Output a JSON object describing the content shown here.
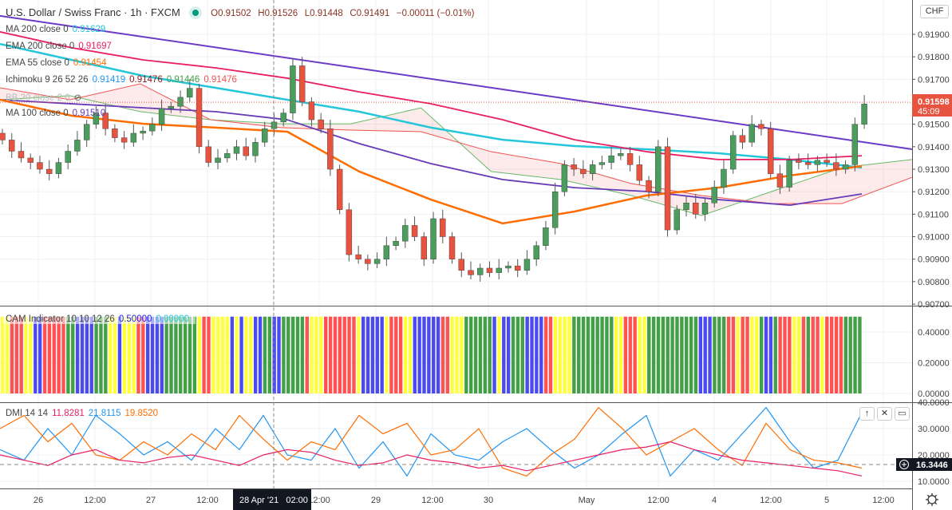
{
  "header": {
    "symbol": "U.S. Dollar / Swiss Franc · 1h · FXCM",
    "open": "O0.91502",
    "high": "H0.91526",
    "low": "L0.91448",
    "close": "C0.91491",
    "change": "−0.00011 (−0.01%)",
    "currency": "CHF"
  },
  "legend": {
    "ma200": {
      "label": "MA 200 close 0",
      "value": "0.91629",
      "color": "#26c6da"
    },
    "ema200": {
      "label": "EMA 200 close 0",
      "value": "0.91697",
      "color": "#e91e63"
    },
    "ema55": {
      "label": "EMA 55 close 0",
      "value": "0.91454",
      "color": "#ff6d00"
    },
    "ichimoku": {
      "label": "Ichimoku 9 26 52 26",
      "v1": "0.91419",
      "v2": "0.91476",
      "v3": "0.91446",
      "v4": "0.91476"
    },
    "bb": {
      "label": "BB 20 close 2 0"
    },
    "ma100": {
      "label": "MA 100 close 0",
      "value": "0.91510",
      "color": "#673ab7"
    },
    "cam": {
      "label": "CAM Indicator 10 10 12 26",
      "v1": "0.50000",
      "v2": "0.00000"
    },
    "dmi": {
      "label": "DMI 14 14",
      "v1": "11.8281",
      "v2": "21.8115",
      "v3": "19.8520"
    }
  },
  "price_axis": [
    "0.91900",
    "0.91800",
    "0.91700",
    "0.91500",
    "0.91400",
    "0.91300",
    "0.91200",
    "0.91100",
    "0.91000",
    "0.90900",
    "0.90800",
    "0.90700"
  ],
  "last_price": {
    "value": "0.91598",
    "countdown": "45:09"
  },
  "cam_axis": [
    "0.40000",
    "0.20000",
    "0.00000"
  ],
  "dmi_axis": [
    "40.0000",
    "30.0000",
    "20.0000",
    "10.0000"
  ],
  "dmi_crosshair": "16.3446",
  "time_axis": [
    "26",
    "12:00",
    "27",
    "12:00",
    "12:00",
    "29",
    "12:00",
    "30",
    "May",
    "12:00",
    "4",
    "12:00",
    "5",
    "12:00"
  ],
  "crosshair_time": "28 Apr '21   02:00",
  "chart_data": [
    {
      "type": "candlestick",
      "title": "U.S. Dollar / Swiss Franc · 1h · FXCM",
      "x_ticks": [
        "26",
        "12:00",
        "27",
        "12:00",
        "28 Apr '21 02:00",
        "12:00",
        "29",
        "12:00",
        "30",
        "May",
        "12:00",
        "4",
        "12:00",
        "5",
        "12:00"
      ],
      "ylim": [
        0.907,
        0.9195
      ],
      "closes_2h": [
        0.9143,
        0.9138,
        0.9135,
        0.9133,
        0.913,
        0.9128,
        0.9133,
        0.9138,
        0.9143,
        0.915,
        0.9155,
        0.9148,
        0.9144,
        0.9142,
        0.9146,
        0.9147,
        0.915,
        0.9157,
        0.9158,
        0.9162,
        0.9166,
        0.914,
        0.9133,
        0.9135,
        0.9137,
        0.914,
        0.9136,
        0.9142,
        0.9148,
        0.9151,
        0.9155,
        0.9176,
        0.916,
        0.9152,
        0.9148,
        0.913,
        0.9112,
        0.9092,
        0.909,
        0.9088,
        0.909,
        0.9096,
        0.9098,
        0.9105,
        0.91,
        0.909,
        0.9108,
        0.91,
        0.909,
        0.9085,
        0.9083,
        0.9086,
        0.9084,
        0.9086,
        0.9087,
        0.9085,
        0.909,
        0.9096,
        0.9104,
        0.912,
        0.9132,
        0.913,
        0.9128,
        0.9132,
        0.9133,
        0.9136,
        0.9137,
        0.9132,
        0.9125,
        0.912,
        0.914,
        0.9103,
        0.9112,
        0.9115,
        0.911,
        0.9115,
        0.9122,
        0.913,
        0.9145,
        0.9142,
        0.915,
        0.9148,
        0.9128,
        0.9122,
        0.9134,
        0.9133,
        0.9132,
        0.9134,
        0.9133,
        0.913,
        0.9132,
        0.915,
        0.9159
      ],
      "overlays": [
        {
          "name": "MA 200 close 0",
          "color": "#26c6da",
          "values": [
            0.91857,
            0.91786,
            0.91715,
            0.91662,
            0.91609,
            0.91556,
            0.91485,
            0.91431,
            0.91403,
            0.91389,
            0.91371,
            0.91343,
            0.91307
          ]
        },
        {
          "name": "EMA 200 close 0",
          "color": "#e91e63",
          "values": [
            0.91911,
            0.9184,
            0.91786,
            0.91751,
            0.91705,
            0.91644,
            0.91591,
            0.9152,
            0.91431,
            0.91378,
            0.91343,
            0.91343,
            0.9136
          ]
        },
        {
          "name": "MA 100 close 0",
          "color": "#673ab7",
          "values": [
            0.91609,
            0.91591,
            0.91573,
            0.91556,
            0.9152,
            0.91414,
            0.91325,
            0.91254,
            0.91218,
            0.91201,
            0.91165,
            0.9114,
            0.9119
          ]
        },
        {
          "name": "EMA 55 close 0",
          "color": "#ff6d00",
          "values": [
            0.91609,
            0.91538,
            0.91502,
            0.91485,
            0.91467,
            0.9129,
            0.91165,
            0.91059,
            0.91112,
            0.91183,
            0.91218,
            0.91272,
            0.91314
          ]
        }
      ],
      "ichimoku_span_a": [
        0.91609,
        0.91627,
        0.91556,
        0.9152,
        0.91502,
        0.91502,
        0.91573,
        0.9129,
        0.91254,
        0.91183,
        0.91094,
        0.91201,
        0.91307,
        0.91343
      ],
      "ichimoku_span_b": [
        0.91662,
        0.91609,
        0.9168,
        0.9152,
        0.91485,
        0.91474,
        0.91467,
        0.91378,
        0.91325,
        0.91236,
        0.91183,
        0.91147,
        0.91147,
        0.91264
      ],
      "trendline": [
        0.91982,
        0.91389
      ],
      "last_price": 0.91598
    },
    {
      "type": "bar",
      "title": "CAM Indicator 10 10 12 26",
      "ylim": [
        0,
        0.5
      ],
      "colors": {
        "Y": "#ffff3b",
        "R": "#ff5252",
        "B": "#4a4af0",
        "G": "#43a047"
      },
      "sequence": "YYRRRYYBBRRRRRGGBBBBGGGYYBYYYRRBBBBGGGGGGGYRRYYYYBYBYYBBGGBBGGGGGRYYYRRRRRRRYBBBBBYRRRYYBBBBBBRRYYYGGGGGGBYBBGGGBBBBRRYYYYGGGGGGGGGYYRRRYYGGGGGGGGGGGBBBGGGRRYRRYYGBBGRRRYYRGRRYRRRRGGGGGGGG",
      "value": 0.5
    },
    {
      "type": "line",
      "title": "DMI 14 14",
      "ylim": [
        5,
        41
      ],
      "series": [
        {
          "name": "+DI",
          "color": "#2196f3",
          "values": [
            22,
            18,
            30,
            20,
            35,
            28,
            20,
            25,
            18,
            30,
            22,
            35,
            20,
            18,
            30,
            15,
            25,
            12,
            28,
            20,
            18,
            25,
            30,
            22,
            15,
            20,
            28,
            35,
            12,
            22,
            18,
            28,
            38,
            25,
            15,
            18,
            36
          ]
        },
        {
          "name": "-DI",
          "color": "#ff6d00",
          "values": [
            30,
            35,
            25,
            32,
            20,
            18,
            25,
            20,
            28,
            22,
            35,
            26,
            18,
            25,
            22,
            35,
            28,
            32,
            20,
            22,
            30,
            15,
            12,
            20,
            26,
            38,
            30,
            20,
            25,
            30,
            22,
            16,
            32,
            22,
            18,
            17,
            15
          ]
        },
        {
          "name": "ADX",
          "color": "#e91e63",
          "values": [
            20,
            18,
            16,
            20,
            22,
            18,
            17,
            19,
            20,
            18,
            16,
            20,
            22,
            21,
            18,
            16,
            17,
            20,
            18,
            17,
            15,
            16,
            14,
            16,
            18,
            20,
            22,
            23,
            25,
            22,
            20,
            18,
            17,
            16,
            15,
            14,
            12
          ]
        }
      ]
    }
  ]
}
